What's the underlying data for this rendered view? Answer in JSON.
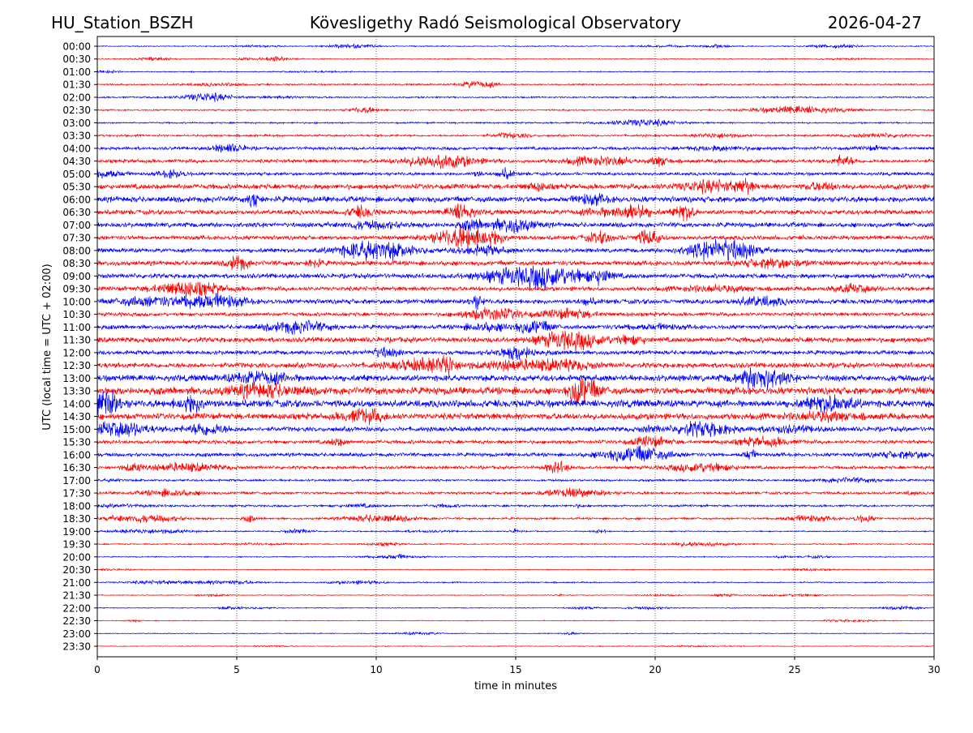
{
  "header": {
    "station": "HU_Station_BSZH",
    "observatory": "Kövesligethy Radó Seismological Observatory",
    "date": "2026-04-27"
  },
  "colors": {
    "even_trace": "#0000ff",
    "odd_trace": "#ff0000",
    "grid": "#000000"
  },
  "chart_data": {
    "type": "line",
    "title": "Kövesligethy Radó Seismological Observatory",
    "xlabel": "time in minutes",
    "ylabel": "UTC (local time = UTC + 02:00)",
    "xlim": [
      0,
      30
    ],
    "x_ticks": [
      "0",
      "5",
      "10",
      "15",
      "20",
      "25",
      "30"
    ],
    "grid": "vertical dotted at every 5 minutes",
    "rows": [
      "00:00",
      "00:30",
      "01:00",
      "01:30",
      "02:00",
      "02:30",
      "03:00",
      "03:30",
      "04:00",
      "04:30",
      "05:00",
      "05:30",
      "06:00",
      "06:30",
      "07:00",
      "07:30",
      "08:00",
      "08:30",
      "09:00",
      "09:30",
      "10:00",
      "10:30",
      "11:00",
      "11:30",
      "12:00",
      "12:30",
      "13:00",
      "13:30",
      "14:00",
      "14:30",
      "15:00",
      "15:30",
      "16:00",
      "16:30",
      "17:00",
      "17:30",
      "18:00",
      "18:30",
      "19:00",
      "19:30",
      "20:00",
      "20:30",
      "21:00",
      "21:30",
      "22:00",
      "22:30",
      "23:00",
      "23:30"
    ],
    "relative_noise_level": [
      0.1,
      0.1,
      0.1,
      0.15,
      0.15,
      0.15,
      0.15,
      0.2,
      0.3,
      0.35,
      0.3,
      0.5,
      0.55,
      0.45,
      0.45,
      0.4,
      0.4,
      0.45,
      0.45,
      0.4,
      0.45,
      0.35,
      0.4,
      0.5,
      0.4,
      0.5,
      0.6,
      0.7,
      0.7,
      0.6,
      0.45,
      0.35,
      0.35,
      0.3,
      0.2,
      0.25,
      0.2,
      0.2,
      0.12,
      0.12,
      0.1,
      0.08,
      0.12,
      0.08,
      0.08,
      0.08,
      0.08,
      0.08
    ]
  }
}
